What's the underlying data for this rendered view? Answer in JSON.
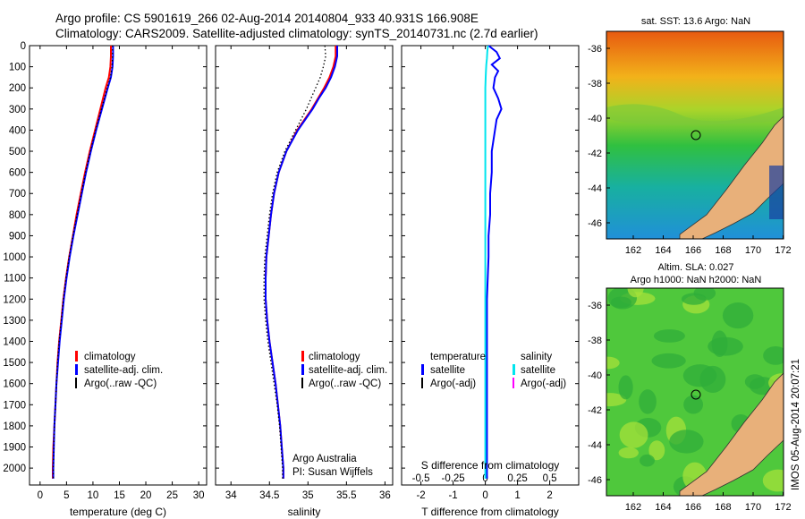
{
  "header": {
    "line1": "Argo profile: CS 5901619_266 02-Aug-2014 20140804_933 40.931S 166.908E",
    "line2": "Climatology: CARS2009. Satellite-adjusted climatology: synTS_20140731.nc (2.7d earlier)"
  },
  "colors": {
    "climatology": "#ff0000",
    "satellite": "#0000ff",
    "argo": "#000000",
    "satellite_salinity": "#00e5ee",
    "argo_adj_salinity": "#ff00ff",
    "land": "#e8b07a"
  },
  "depth_axis": {
    "ylim": [
      0,
      2080
    ],
    "ticks": [
      0,
      100,
      200,
      300,
      400,
      500,
      600,
      700,
      800,
      900,
      1000,
      1100,
      1200,
      1300,
      1400,
      1500,
      1600,
      1700,
      1800,
      1900,
      2000
    ]
  },
  "chart_data": [
    {
      "type": "line",
      "id": "temperature",
      "xlabel": "temperature (deg C)",
      "xlim": [
        -2,
        31.5
      ],
      "xticks": [
        "0",
        "5",
        "10",
        "15",
        "20",
        "25",
        "30"
      ],
      "xtick_values": [
        0,
        5,
        10,
        15,
        20,
        25,
        30
      ],
      "legend": [
        "climatology",
        "satellite-adj. clim.",
        "Argo(..raw -QC)"
      ],
      "depth": [
        0,
        50,
        100,
        150,
        200,
        300,
        400,
        500,
        600,
        700,
        800,
        900,
        1000,
        1100,
        1200,
        1300,
        1400,
        1500,
        1600,
        1700,
        1800,
        1900,
        2000,
        2050
      ],
      "series": [
        {
          "name": "climatology",
          "values": [
            13.4,
            13.4,
            13.3,
            13.0,
            12.4,
            11.4,
            10.4,
            9.4,
            8.5,
            7.7,
            6.9,
            6.2,
            5.5,
            4.9,
            4.4,
            4.0,
            3.6,
            3.3,
            3.1,
            2.9,
            2.7,
            2.5,
            2.4,
            2.4
          ]
        },
        {
          "name": "satellite-adj. clim.",
          "values": [
            13.8,
            13.8,
            13.7,
            13.4,
            12.8,
            11.7,
            10.6,
            9.6,
            8.7,
            7.9,
            7.1,
            6.3,
            5.6,
            5.0,
            4.5,
            4.1,
            3.7,
            3.4,
            3.1,
            2.9,
            2.7,
            2.6,
            2.5,
            2.5
          ]
        },
        {
          "name": "Argo(..raw -QC)",
          "values": [
            13.7,
            13.7,
            13.6,
            13.3,
            12.7,
            11.6,
            10.5,
            9.5,
            8.6,
            7.8,
            7.0,
            6.2,
            5.5,
            4.9,
            4.4,
            4.0,
            3.6,
            3.3,
            3.1,
            2.9,
            2.7,
            2.6,
            2.5,
            2.5
          ]
        }
      ]
    },
    {
      "type": "line",
      "id": "salinity",
      "xlabel": "salinity",
      "xlim": [
        33.8,
        36.1
      ],
      "xticks": [
        "34",
        "34.5",
        "35",
        "35.5",
        "36"
      ],
      "xtick_values": [
        34,
        34.5,
        35,
        35.5,
        36
      ],
      "legend": [
        "climatology",
        "satellite-adj. clim.",
        "Argo(..raw -QC)"
      ],
      "annotation": [
        "Argo Australia",
        "PI: Susan Wijffels"
      ],
      "depth": [
        0,
        50,
        100,
        150,
        200,
        250,
        300,
        400,
        500,
        600,
        700,
        800,
        900,
        1000,
        1100,
        1200,
        1300,
        1400,
        1500,
        1600,
        1700,
        1800,
        1900,
        2000,
        2050
      ],
      "series": [
        {
          "name": "climatology",
          "values": [
            35.36,
            35.36,
            35.33,
            35.28,
            35.21,
            35.13,
            35.05,
            34.86,
            34.72,
            34.62,
            34.56,
            34.52,
            34.49,
            34.46,
            34.45,
            34.45,
            34.47,
            34.5,
            34.54,
            34.58,
            34.61,
            34.64,
            34.66,
            34.68,
            34.68
          ]
        },
        {
          "name": "satellite-adj. clim.",
          "values": [
            35.38,
            35.38,
            35.35,
            35.3,
            35.23,
            35.14,
            35.06,
            34.87,
            34.72,
            34.62,
            34.56,
            34.52,
            34.49,
            34.46,
            34.45,
            34.45,
            34.47,
            34.5,
            34.54,
            34.58,
            34.61,
            34.64,
            34.66,
            34.68,
            34.68
          ]
        },
        {
          "name": "Argo(..raw -QC)",
          "values": [
            35.22,
            35.23,
            35.2,
            35.16,
            35.1,
            35.04,
            34.98,
            34.84,
            34.7,
            34.6,
            34.54,
            34.5,
            34.47,
            34.44,
            34.43,
            34.43,
            34.45,
            34.48,
            34.52,
            34.56,
            34.6,
            34.63,
            34.65,
            34.67,
            34.67
          ]
        }
      ]
    },
    {
      "type": "line",
      "id": "difference",
      "xlabel": "T difference from climatology",
      "xlabel_top": "S difference from climatology",
      "xlim": [
        -2.6,
        2.9
      ],
      "xticks": [
        "-2",
        "-1",
        "0",
        "1",
        "2"
      ],
      "xtick_values": [
        -2,
        -1,
        0,
        1,
        2
      ],
      "s_ticks": [
        "-0.5",
        "-0.25",
        "0",
        "0.25",
        "0.5"
      ],
      "s_tick_positions": [
        -2,
        -1,
        0,
        1,
        2
      ],
      "legend_t": {
        "title": "temperature",
        "items": [
          "satellite",
          "Argo(-adj)"
        ]
      },
      "legend_s": {
        "title": "salinity",
        "items": [
          "satellite",
          "Argo(-adj)"
        ]
      },
      "depth": [
        0,
        30,
        60,
        90,
        120,
        150,
        200,
        250,
        300,
        350,
        400,
        450,
        500,
        600,
        700,
        800,
        900,
        1000,
        1200,
        1400,
        1600,
        1800,
        2000,
        2050
      ],
      "series": [
        {
          "name": "temperature satellite",
          "values": [
            0.1,
            0.35,
            0.45,
            0.2,
            0.4,
            0.3,
            0.25,
            0.4,
            0.5,
            0.35,
            0.3,
            0.25,
            0.2,
            0.2,
            0.15,
            0.15,
            0.1,
            0.1,
            0.05,
            0.05,
            0.05,
            0.05,
            0.05,
            0.05
          ]
        },
        {
          "name": "salinity satellite",
          "values": [
            0.08,
            0.06,
            0.05,
            0.03,
            0.02,
            0.01,
            0.0,
            0.0,
            0.0,
            0.0,
            0.0,
            0.0,
            0.0,
            0.0,
            0.0,
            0.0,
            0.0,
            0.0,
            0.0,
            0.0,
            0.0,
            0.0,
            0.0,
            0.0
          ]
        }
      ]
    }
  ],
  "maps": [
    {
      "id": "sst",
      "title": "sat. SST: 13.6 Argo: NaN",
      "yticks": [
        "-36",
        "-38",
        "-40",
        "-42",
        "-44",
        "-46"
      ],
      "xticks": [
        "162",
        "164",
        "166",
        "168",
        "170",
        "172"
      ]
    },
    {
      "id": "sla",
      "title_lines": [
        "Altim. SLA: 0.027",
        "Argo h1000: NaN h2000: NaN"
      ],
      "yticks": [
        "-36",
        "-38",
        "-40",
        "-42",
        "-44",
        "-46"
      ],
      "xticks": [
        "162",
        "164",
        "166",
        "168",
        "170",
        "172"
      ]
    }
  ],
  "side_label": "IMOS 05-Aug-2014 20:07:21"
}
